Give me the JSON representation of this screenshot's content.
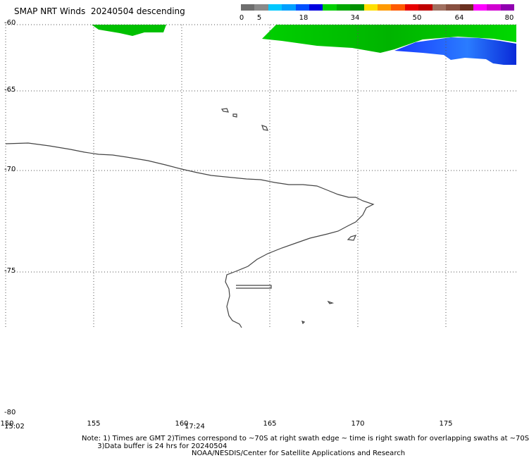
{
  "title": "SMAP NRT Winds  20240504 descending",
  "colorbar": {
    "labels": [
      "0",
      "5",
      "18",
      "34",
      "50",
      "64",
      "80"
    ],
    "colors": [
      "#6e6e6e",
      "#8a8a8a",
      "#00c8ff",
      "#00a0ff",
      "#0050ff",
      "#0000e0",
      "#00d000",
      "#00a800",
      "#009000",
      "#ffe000",
      "#ff9a00",
      "#ff5a00",
      "#e80000",
      "#c00000",
      "#a07060",
      "#885040",
      "#6a3020",
      "#ff00ff",
      "#d000d0",
      "#9000b0"
    ]
  },
  "map": {
    "lat_labels": [
      "-60",
      "-65",
      "-70",
      "-75",
      "-80"
    ],
    "lon_labels": [
      "150",
      "155",
      "160",
      "165",
      "170",
      "175"
    ],
    "times": [
      "15:02",
      "17:24"
    ],
    "swath_colors": {
      "green": "#00c800",
      "blue": "#1a3cff",
      "light_blue": "#2aa0ff"
    }
  },
  "note_lines": [
    "Note: 1) Times are GMT 2)Times correspond to ~70S at right swath edge ~ time is right swath for overlapping swaths at ~70S",
    "       3)Data buffer is 24 hrs for 20240504"
  ],
  "credit": "NOAA/NESDIS/Center for Satellite Applications and Research"
}
